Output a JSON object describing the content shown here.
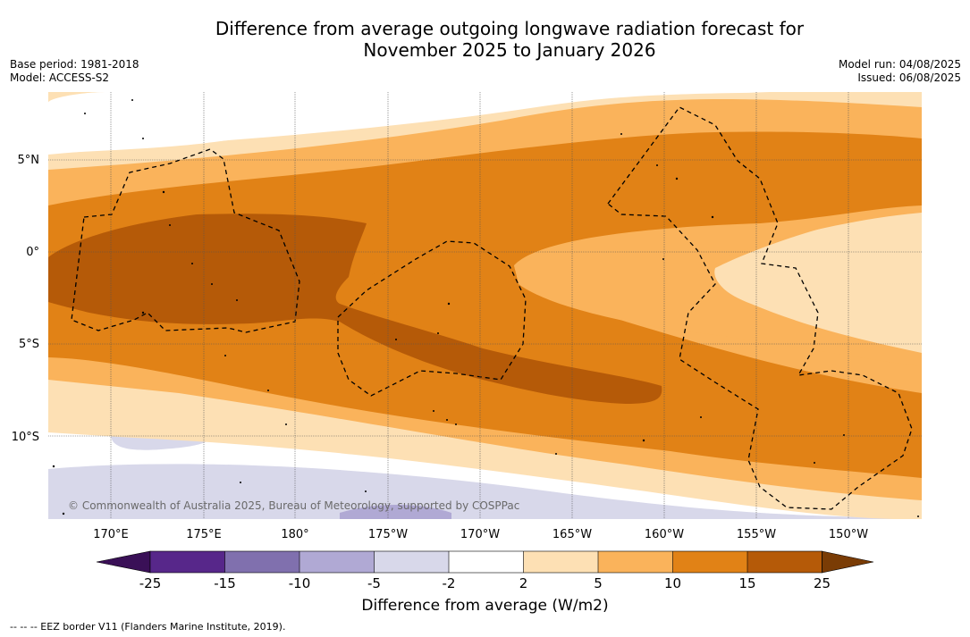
{
  "header": {
    "title_line1": "Difference from average outgoing longwave radiation forecast for",
    "title_line2": "November 2025 to January 2026",
    "base_period": "Base period: 1981-2018",
    "model": "Model: ACCESS-S2",
    "model_run": "Model run: 04/08/2025",
    "issued": "Issued: 06/08/2025"
  },
  "map": {
    "lat_labels": [
      "5°N",
      "0°",
      "5°S",
      "10°S"
    ],
    "lon_labels": [
      "170°E",
      "175°E",
      "180°",
      "175°W",
      "170°W",
      "165°W",
      "160°W",
      "155°W",
      "150°W"
    ],
    "copyright": "© Commonwealth of Australia 2025, Bureau of Meteorology, supported by COSPPac"
  },
  "colorbar": {
    "tick_labels": [
      "-25",
      "-15",
      "-10",
      "-5",
      "-2",
      "2",
      "5",
      "10",
      "15",
      "25"
    ],
    "colors": [
      "#3a1057",
      "#57278a",
      "#8070ae",
      "#b0a9d4",
      "#d8d8ea",
      "#ffffff",
      "#fde0b4",
      "#fab35b",
      "#e18216",
      "#b55a08",
      "#7a3c05"
    ],
    "label": "Difference from average (W/m2)"
  },
  "footnote": "--  --  -- EEZ border V11 (Flanders Marine Institute, 2019)."
}
